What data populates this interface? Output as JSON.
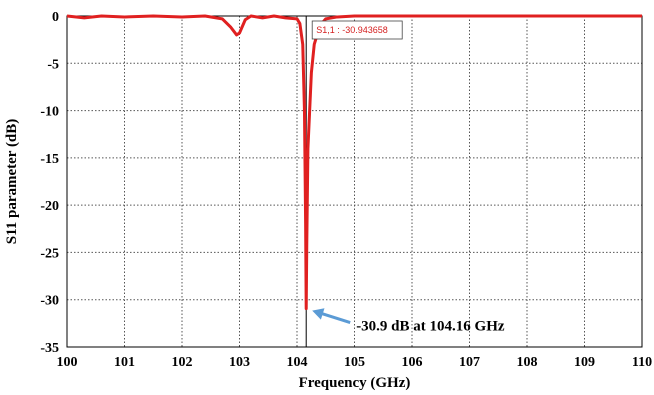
{
  "chart_data": {
    "type": "line",
    "xlabel": "Frequency (GHz)",
    "ylabel": "S11 parameter (dB)",
    "xlim": [
      100,
      110
    ],
    "ylim": [
      -35,
      0
    ],
    "x_ticks": [
      "100",
      "101",
      "102",
      "103",
      "104",
      "105",
      "106",
      "107",
      "108",
      "109",
      "110"
    ],
    "y_ticks": [
      "0",
      "-5",
      "-10",
      "-15",
      "-20",
      "-25",
      "-30",
      "-35"
    ],
    "grid": true,
    "series": [
      {
        "color": "#e02020",
        "x": [
          100,
          100.3,
          100.6,
          101,
          101.5,
          102,
          102.4,
          102.7,
          102.85,
          102.95,
          103.0,
          103.1,
          103.2,
          103.4,
          103.6,
          103.8,
          104.0,
          104.05,
          104.1,
          104.13,
          104.15,
          104.16,
          104.17,
          104.19,
          104.22,
          104.25,
          104.3,
          104.4,
          104.5,
          104.7,
          105,
          105.5,
          106,
          107,
          108,
          109,
          110
        ],
        "y": [
          0,
          -0.2,
          0,
          -0.1,
          0,
          -0.1,
          0,
          -0.3,
          -1.2,
          -2.0,
          -1.8,
          -0.4,
          0,
          -0.2,
          0,
          -0.2,
          -0.3,
          -0.8,
          -3.0,
          -10.0,
          -22.0,
          -30.94,
          -24.0,
          -14.0,
          -10.0,
          -6.0,
          -3.0,
          -1.0,
          -0.3,
          -0.1,
          0,
          0,
          0,
          0,
          0,
          0,
          0
        ]
      }
    ],
    "marker": {
      "x": 104.16,
      "label": "S1,1 : -30.943658"
    },
    "annotation": {
      "text": "-30.9 dB at 104.16 GHz",
      "x": 104.16,
      "y": -30.94,
      "arrow_color": "#5b9bd5"
    }
  }
}
